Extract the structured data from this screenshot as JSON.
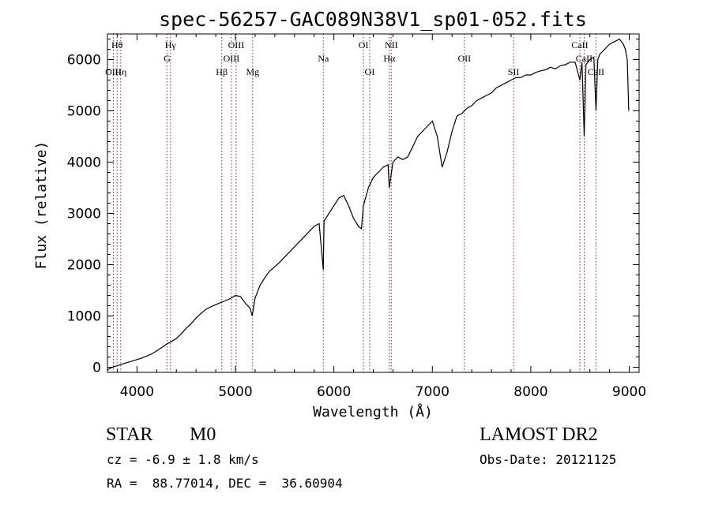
{
  "chart_data": {
    "type": "line",
    "title": "spec-56257-GAC089N38V1_sp01-052.fits",
    "xlabel": "Wavelength (Å)",
    "ylabel": "Flux (relative)",
    "xlim": [
      3700,
      9100
    ],
    "ylim": [
      -100,
      6500
    ],
    "x_ticks": [
      4000,
      5000,
      6000,
      7000,
      8000,
      9000
    ],
    "y_ticks": [
      0,
      1000,
      2000,
      3000,
      4000,
      5000,
      6000
    ],
    "series": [
      {
        "x": [
          3700,
          3750,
          3800,
          3850,
          3900,
          3950,
          4000,
          4050,
          4100,
          4150,
          4200,
          4250,
          4300,
          4350,
          4400,
          4450,
          4500,
          4550,
          4600,
          4650,
          4700,
          4750,
          4800,
          4850,
          4900,
          4950,
          5000,
          5050,
          5100,
          5150,
          5170,
          5200,
          5250,
          5300,
          5350,
          5400,
          5450,
          5500,
          5550,
          5600,
          5650,
          5700,
          5750,
          5800,
          5850,
          5892,
          5900,
          5950,
          6000,
          6050,
          6100,
          6150,
          6200,
          6250,
          6280,
          6300,
          6350,
          6400,
          6450,
          6500,
          6550,
          6563,
          6600,
          6650,
          6700,
          6750,
          6800,
          6850,
          6900,
          6950,
          7000,
          7050,
          7100,
          7150,
          7200,
          7250,
          7300,
          7350,
          7400,
          7450,
          7500,
          7550,
          7600,
          7650,
          7700,
          7750,
          7800,
          7850,
          7900,
          7950,
          8000,
          8050,
          8100,
          8150,
          8200,
          8250,
          8300,
          8350,
          8400,
          8450,
          8498,
          8520,
          8542,
          8560,
          8600,
          8640,
          8662,
          8680,
          8700,
          8750,
          8800,
          8850,
          8900,
          8940,
          8960,
          8980,
          8995
        ],
        "y": [
          -50,
          0,
          30,
          60,
          90,
          120,
          150,
          180,
          220,
          260,
          320,
          380,
          450,
          500,
          560,
          650,
          760,
          850,
          960,
          1050,
          1130,
          1180,
          1220,
          1260,
          1300,
          1340,
          1400,
          1380,
          1250,
          1150,
          1000,
          1350,
          1600,
          1750,
          1880,
          1960,
          2050,
          2150,
          2250,
          2350,
          2450,
          2550,
          2650,
          2750,
          2800,
          1900,
          2850,
          3000,
          3150,
          3300,
          3350,
          3150,
          2900,
          2750,
          2700,
          3150,
          3500,
          3700,
          3800,
          3900,
          3950,
          3500,
          4000,
          4100,
          4050,
          4100,
          4300,
          4500,
          4600,
          4700,
          4800,
          4500,
          3900,
          4200,
          4600,
          4900,
          4950,
          5050,
          5100,
          5200,
          5250,
          5300,
          5350,
          5450,
          5500,
          5550,
          5600,
          5650,
          5650,
          5700,
          5700,
          5750,
          5780,
          5800,
          5850,
          5820,
          5880,
          5900,
          5950,
          5950,
          5600,
          5950,
          4500,
          5900,
          6000,
          6050,
          5000,
          6000,
          6100,
          6200,
          6300,
          6350,
          6400,
          6300,
          6200,
          6000,
          5000
        ]
      }
    ],
    "lines": [
      {
        "label": "Hθ",
        "x": 3798,
        "row": 0
      },
      {
        "label": "OIII",
        "x": 3760,
        "row": 2
      },
      {
        "label": "Hη",
        "x": 3835,
        "row": 2
      },
      {
        "label": "Hγ",
        "x": 4340,
        "row": 0
      },
      {
        "label": "G",
        "x": 4305,
        "row": 1
      },
      {
        "label": "Hβ",
        "x": 4861,
        "row": 2
      },
      {
        "label": "OIII",
        "x": 5007,
        "row": 0
      },
      {
        "label": "OIII",
        "x": 4959,
        "row": 1
      },
      {
        "label": "Mg",
        "x": 5175,
        "row": 2
      },
      {
        "label": "Na",
        "x": 5893,
        "row": 1
      },
      {
        "label": "OI",
        "x": 6300,
        "row": 0
      },
      {
        "label": "OI",
        "x": 6364,
        "row": 2
      },
      {
        "label": "NII",
        "x": 6583,
        "row": 0
      },
      {
        "label": "Hα",
        "x": 6563,
        "row": 1
      },
      {
        "label": "OII",
        "x": 7325,
        "row": 1
      },
      {
        "label": "SII",
        "x": 7825,
        "row": 2
      },
      {
        "label": "CaII",
        "x": 8498,
        "row": 0
      },
      {
        "label": "CaII",
        "x": 8542,
        "row": 1
      },
      {
        "label": "CaII",
        "x": 8662,
        "row": 2
      }
    ],
    "grid": false
  },
  "info": {
    "class_label": "STAR",
    "subclass": "M0",
    "survey": "LAMOST DR2",
    "cz": "cz = -6.9 ± 1.8 km/s",
    "obs_date": "Obs-Date: 20121125",
    "coords": "RA =  88.77014, DEC =  36.60904"
  },
  "colors": {
    "spectrum": "#000000",
    "marker_lines": "#a02020",
    "axes": "#000000"
  }
}
